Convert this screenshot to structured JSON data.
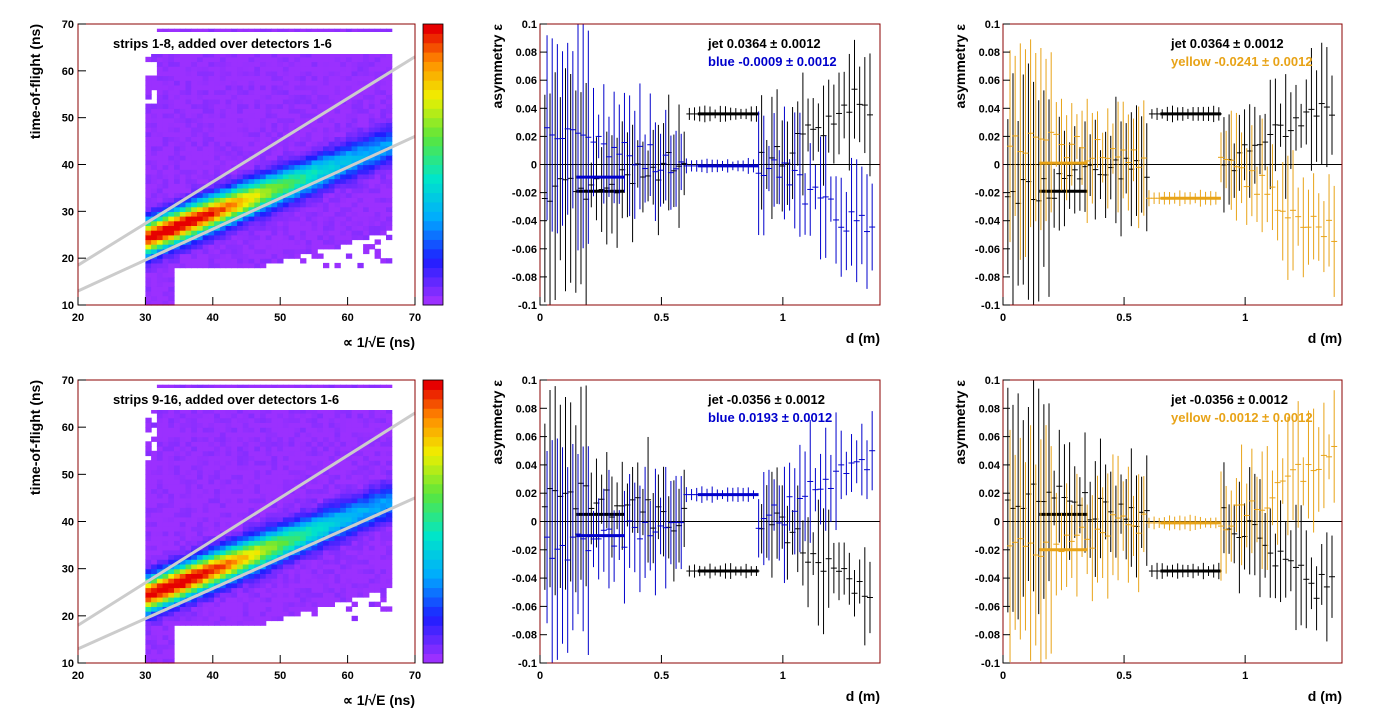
{
  "colors": {
    "frame": "#8b0000",
    "jet": "#000000",
    "blue": "#0000cc",
    "yellow": "#e8a317",
    "fitline": "#cccccc",
    "background": "#9b30ff"
  },
  "chart_data": [
    {
      "type": "heatmap",
      "title": "strips 1-8, added over detectors 1-6",
      "xlabel": "∝ 1/√E (ns)",
      "ylabel": "time-of-flight (ns)",
      "xlim": [
        20,
        70
      ],
      "ylim": [
        10,
        70
      ],
      "xticks": [
        "20",
        "30",
        "40",
        "50",
        "60",
        "70"
      ],
      "yticks": [
        "10",
        "20",
        "30",
        "40",
        "50",
        "60",
        "70"
      ],
      "palette_scale": "rainbow",
      "band_lines": [
        {
          "x": [
            20,
            70
          ],
          "y": [
            18.5,
            63
          ]
        },
        {
          "x": [
            20,
            70
          ],
          "y": [
            13,
            46
          ]
        }
      ],
      "peak": {
        "x": 34,
        "y": 26
      }
    },
    {
      "type": "scatter",
      "xlabel": "d (m)",
      "ylabel": "asymmetry ε",
      "xlim": [
        0,
        1.4
      ],
      "ylim": [
        -0.1,
        0.1
      ],
      "xticks": [
        "0",
        "0.5",
        "1"
      ],
      "yticks": [
        "-0.1",
        "-0.08",
        "-0.06",
        "-0.04",
        "-0.02",
        "0",
        "0.02",
        "0.04",
        "0.06",
        "0.08",
        "0.1"
      ],
      "legend": [
        {
          "label": "jet  0.0364 ± 0.0012",
          "color": "#000000"
        },
        {
          "label": "blue -0.0009 ± 0.0012",
          "color": "#0000cc"
        }
      ],
      "series": [
        {
          "color": "#000000",
          "sign": 1,
          "inner_level": -0.019,
          "center_level": 0.036
        },
        {
          "color": "#0000cc",
          "sign": -1,
          "inner_level": -0.009,
          "center_level": -0.001
        }
      ]
    },
    {
      "type": "scatter",
      "xlabel": "d (m)",
      "ylabel": "asymmetry ε",
      "xlim": [
        0,
        1.4
      ],
      "ylim": [
        -0.1,
        0.1
      ],
      "xticks": [
        "0",
        "0.5",
        "1"
      ],
      "yticks": [
        "-0.1",
        "-0.08",
        "-0.06",
        "-0.04",
        "-0.02",
        "0",
        "0.02",
        "0.04",
        "0.06",
        "0.08",
        "0.1"
      ],
      "legend": [
        {
          "label": "jet  0.0364 ± 0.0012",
          "color": "#000000"
        },
        {
          "label": "yellow -0.0241 ± 0.0012",
          "color": "#e8a317"
        }
      ],
      "series": [
        {
          "color": "#000000",
          "sign": 1,
          "inner_level": -0.019,
          "center_level": 0.036
        },
        {
          "color": "#e8a317",
          "sign": -1,
          "inner_level": 0.001,
          "center_level": -0.024
        }
      ]
    },
    {
      "type": "heatmap",
      "title": "strips 9-16, added over detectors 1-6",
      "xlabel": "∝ 1/√E (ns)",
      "ylabel": "time-of-flight (ns)",
      "xlim": [
        20,
        70
      ],
      "ylim": [
        10,
        70
      ],
      "xticks": [
        "20",
        "30",
        "40",
        "50",
        "60",
        "70"
      ],
      "yticks": [
        "10",
        "20",
        "30",
        "40",
        "50",
        "60",
        "70"
      ],
      "palette_scale": "rainbow",
      "band_lines": [
        {
          "x": [
            20,
            70
          ],
          "y": [
            18,
            63
          ]
        },
        {
          "x": [
            20,
            70
          ],
          "y": [
            13,
            45
          ]
        }
      ],
      "peak": {
        "x": 34,
        "y": 25.5
      }
    },
    {
      "type": "scatter",
      "xlabel": "d (m)",
      "ylabel": "asymmetry ε",
      "xlim": [
        0,
        1.4
      ],
      "ylim": [
        -0.1,
        0.1
      ],
      "xticks": [
        "0",
        "0.5",
        "1"
      ],
      "yticks": [
        "-0.1",
        "-0.08",
        "-0.06",
        "-0.04",
        "-0.02",
        "0",
        "0.02",
        "0.04",
        "0.06",
        "0.08",
        "0.1"
      ],
      "legend": [
        {
          "label": "jet -0.0356 ± 0.0012",
          "color": "#000000"
        },
        {
          "label": "blue  0.0193 ± 0.0012",
          "color": "#0000cc"
        }
      ],
      "series": [
        {
          "color": "#000000",
          "sign": -1,
          "inner_level": 0.005,
          "center_level": -0.035
        },
        {
          "color": "#0000cc",
          "sign": 1,
          "inner_level": -0.01,
          "center_level": 0.019
        }
      ]
    },
    {
      "type": "scatter",
      "xlabel": "d (m)",
      "ylabel": "asymmetry ε",
      "xlim": [
        0,
        1.4
      ],
      "ylim": [
        -0.1,
        0.1
      ],
      "xticks": [
        "0",
        "0.5",
        "1"
      ],
      "yticks": [
        "-0.1",
        "-0.08",
        "-0.06",
        "-0.04",
        "-0.02",
        "0",
        "0.02",
        "0.04",
        "0.06",
        "0.08",
        "0.1"
      ],
      "legend": [
        {
          "label": "jet -0.0356 ± 0.0012",
          "color": "#000000"
        },
        {
          "label": "yellow -0.0012 ± 0.0012",
          "color": "#e8a317"
        }
      ],
      "series": [
        {
          "color": "#000000",
          "sign": -1,
          "inner_level": 0.005,
          "center_level": -0.035
        },
        {
          "color": "#e8a317",
          "sign": 1,
          "inner_level": -0.02,
          "center_level": -0.001
        }
      ]
    }
  ]
}
